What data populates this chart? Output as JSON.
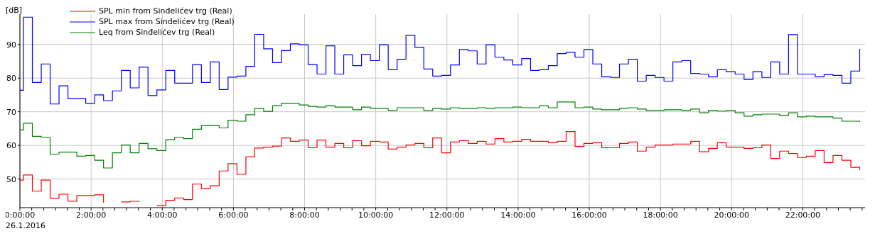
{
  "chart_data": {
    "type": "step",
    "ylabel": "[dB]",
    "annotations": [
      "26.1.2016"
    ],
    "x": [
      0,
      0.1,
      0.35,
      0.6,
      0.85,
      1.1,
      1.35,
      1.6,
      1.85,
      2.1,
      2.35,
      2.6,
      2.85,
      3.1,
      3.35,
      3.6,
      3.85,
      4.1,
      4.35,
      4.6,
      4.85,
      5.1,
      5.35,
      5.6,
      5.85,
      6.1,
      6.35,
      6.6,
      6.85,
      7.1,
      7.35,
      7.6,
      7.85,
      8.1,
      8.35,
      8.6,
      8.85,
      9.1,
      9.35,
      9.6,
      9.85,
      10.1,
      10.35,
      10.6,
      10.85,
      11.1,
      11.35,
      11.6,
      11.85,
      12.1,
      12.35,
      12.6,
      12.85,
      13.1,
      13.35,
      13.6,
      13.85,
      14.1,
      14.35,
      14.6,
      14.85,
      15.1,
      15.35,
      15.6,
      15.85,
      16.1,
      16.35,
      16.6,
      16.85,
      17.1,
      17.35,
      17.6,
      17.85,
      18.1,
      18.35,
      18.6,
      18.85,
      19.1,
      19.35,
      19.6,
      19.85,
      20.1,
      20.35,
      20.6,
      20.85,
      21.1,
      21.35,
      21.6,
      21.85,
      22.1,
      22.35,
      22.6,
      22.85,
      23.1,
      23.35,
      23.6
    ],
    "series": [
      {
        "name": "SPL min from Sinđelićev trg (Real)",
        "color": "#ff0000",
        "values": [
          49.7,
          51.2,
          46.4,
          49.7,
          44.3,
          45.5,
          43.4,
          45.1,
          45.1,
          45.3,
          43.0,
          null,
          43.2,
          43.4,
          43.2,
          null,
          42.1,
          43.7,
          44.4,
          43.9,
          48.5,
          47.2,
          48.0,
          52.4,
          54.6,
          51.4,
          56.6,
          59.2,
          59.5,
          59.8,
          62.2,
          61.2,
          61.6,
          59.3,
          61.6,
          59.5,
          60.6,
          59.3,
          61.4,
          59.9,
          61.2,
          61.0,
          58.9,
          59.5,
          60.1,
          60.6,
          59.3,
          62.2,
          57.8,
          61.0,
          61.4,
          60.6,
          61.2,
          60.4,
          62.0,
          61.0,
          61.2,
          61.8,
          61.2,
          61.2,
          60.8,
          61.2,
          64.1,
          59.7,
          60.6,
          60.8,
          59.3,
          59.3,
          60.6,
          61.0,
          58.3,
          59.5,
          60.1,
          60.1,
          60.4,
          60.4,
          61.2,
          58.1,
          59.1,
          60.8,
          59.5,
          59.5,
          59.1,
          59.3,
          60.1,
          56.1,
          58.3,
          57.6,
          56.4,
          56.8,
          58.5,
          54.9,
          57.0,
          55.6,
          53.5,
          52.6
        ]
      },
      {
        "name": "SPL max from Sinđelićev trg (Real)",
        "color": "#0000ff",
        "values": [
          76.4,
          98.1,
          78.7,
          84.2,
          72.3,
          77.7,
          73.9,
          73.9,
          72.5,
          75.0,
          73.3,
          76.2,
          82.3,
          77.1,
          83.3,
          74.8,
          76.5,
          82.3,
          78.5,
          78.5,
          84.0,
          78.7,
          84.8,
          76.6,
          80.3,
          80.6,
          83.5,
          93.0,
          88.7,
          84.6,
          88.2,
          90.2,
          89.9,
          84.0,
          81.2,
          89.6,
          81.2,
          86.9,
          83.7,
          87.1,
          85.2,
          89.9,
          82.5,
          85.6,
          92.7,
          89.2,
          82.7,
          80.6,
          80.8,
          83.9,
          88.5,
          88.1,
          84.2,
          89.9,
          86.2,
          85.4,
          83.9,
          85.8,
          82.3,
          82.5,
          83.7,
          87.3,
          87.7,
          86.2,
          88.5,
          84.2,
          80.4,
          80.2,
          84.2,
          85.6,
          79.1,
          80.8,
          80.2,
          79.1,
          84.8,
          85.2,
          81.4,
          81.2,
          80.4,
          82.5,
          81.9,
          81.2,
          79.6,
          81.9,
          80.2,
          84.8,
          81.2,
          92.9,
          81.2,
          81.2,
          80.4,
          81.0,
          80.8,
          78.5,
          82.1,
          88.7
        ]
      },
      {
        "name": "Leq from Sinđelićev trg (Real)",
        "color": "#008000",
        "values": [
          64.6,
          66.6,
          62.7,
          62.4,
          57.4,
          58.0,
          58.0,
          56.8,
          57.0,
          55.6,
          53.3,
          57.8,
          60.1,
          57.8,
          60.6,
          59.0,
          58.5,
          61.7,
          62.4,
          62.0,
          64.8,
          65.9,
          65.9,
          65.2,
          67.5,
          67.2,
          69.1,
          71.0,
          70.1,
          71.8,
          72.5,
          72.5,
          72.0,
          71.6,
          71.4,
          71.8,
          71.4,
          71.4,
          70.6,
          71.4,
          71.0,
          71.0,
          70.4,
          71.2,
          71.2,
          71.2,
          70.4,
          71.0,
          70.8,
          71.2,
          71.0,
          71.0,
          71.2,
          71.0,
          71.2,
          71.2,
          71.4,
          71.2,
          71.2,
          71.8,
          71.2,
          72.9,
          72.9,
          71.2,
          71.4,
          70.8,
          70.6,
          70.6,
          71.0,
          71.2,
          70.8,
          70.4,
          70.4,
          70.6,
          70.6,
          70.4,
          70.8,
          69.7,
          70.4,
          70.2,
          70.4,
          69.7,
          68.7,
          69.1,
          69.3,
          69.3,
          68.9,
          69.7,
          68.5,
          68.7,
          68.5,
          68.5,
          68.1,
          67.2,
          67.2,
          67.0
        ]
      }
    ],
    "xlim": [
      0,
      23.75
    ],
    "ylim": [
      41.5,
      99
    ],
    "yticks": [
      50,
      60,
      70,
      80,
      90
    ],
    "xticks": [
      {
        "value": 0,
        "label": "0:00:00"
      },
      {
        "value": 0.333,
        "label": null
      },
      {
        "value": 0.667,
        "label": null
      },
      {
        "value": 1,
        "label": null
      },
      {
        "value": 1.333,
        "label": null
      },
      {
        "value": 1.667,
        "label": null
      },
      {
        "value": 2,
        "label": "2:00:00"
      },
      {
        "value": 2.333,
        "label": null
      },
      {
        "value": 2.667,
        "label": null
      },
      {
        "value": 3,
        "label": null
      },
      {
        "value": 3.333,
        "label": null
      },
      {
        "value": 3.667,
        "label": null
      },
      {
        "value": 4,
        "label": "4:00:00"
      },
      {
        "value": 4.333,
        "label": null
      },
      {
        "value": 4.667,
        "label": null
      },
      {
        "value": 5,
        "label": null
      },
      {
        "value": 5.333,
        "label": null
      },
      {
        "value": 5.667,
        "label": null
      },
      {
        "value": 6,
        "label": "6:00:00"
      },
      {
        "value": 6.333,
        "label": null
      },
      {
        "value": 6.667,
        "label": null
      },
      {
        "value": 7,
        "label": null
      },
      {
        "value": 7.333,
        "label": null
      },
      {
        "value": 7.667,
        "label": null
      },
      {
        "value": 8,
        "label": "8:00:00"
      },
      {
        "value": 8.333,
        "label": null
      },
      {
        "value": 8.667,
        "label": null
      },
      {
        "value": 9,
        "label": null
      },
      {
        "value": 9.333,
        "label": null
      },
      {
        "value": 9.667,
        "label": null
      },
      {
        "value": 10,
        "label": "10:00:00"
      },
      {
        "value": 10.333,
        "label": null
      },
      {
        "value": 10.667,
        "label": null
      },
      {
        "value": 11,
        "label": null
      },
      {
        "value": 11.333,
        "label": null
      },
      {
        "value": 11.667,
        "label": null
      },
      {
        "value": 12,
        "label": "12:00:00"
      },
      {
        "value": 12.333,
        "label": null
      },
      {
        "value": 12.667,
        "label": null
      },
      {
        "value": 13,
        "label": null
      },
      {
        "value": 13.333,
        "label": null
      },
      {
        "value": 13.667,
        "label": null
      },
      {
        "value": 14,
        "label": "14:00:00"
      },
      {
        "value": 14.333,
        "label": null
      },
      {
        "value": 14.667,
        "label": null
      },
      {
        "value": 15,
        "label": null
      },
      {
        "value": 15.333,
        "label": null
      },
      {
        "value": 15.667,
        "label": null
      },
      {
        "value": 16,
        "label": "16:00:00"
      },
      {
        "value": 16.333,
        "label": null
      },
      {
        "value": 16.667,
        "label": null
      },
      {
        "value": 17,
        "label": null
      },
      {
        "value": 17.333,
        "label": null
      },
      {
        "value": 17.667,
        "label": null
      },
      {
        "value": 18,
        "label": "18:00:00"
      },
      {
        "value": 18.333,
        "label": null
      },
      {
        "value": 18.667,
        "label": null
      },
      {
        "value": 19,
        "label": null
      },
      {
        "value": 19.333,
        "label": null
      },
      {
        "value": 19.667,
        "label": null
      },
      {
        "value": 20,
        "label": "20:00:00"
      },
      {
        "value": 20.333,
        "label": null
      },
      {
        "value": 20.667,
        "label": null
      },
      {
        "value": 21,
        "label": null
      },
      {
        "value": 21.333,
        "label": null
      },
      {
        "value": 21.667,
        "label": null
      },
      {
        "value": 22,
        "label": "22:00:00"
      },
      {
        "value": 22.333,
        "label": null
      },
      {
        "value": 22.667,
        "label": null
      },
      {
        "value": 23,
        "label": null
      },
      {
        "value": 23.333,
        "label": null
      },
      {
        "value": 23.667,
        "label": null
      }
    ],
    "grid": true,
    "legend": "top left",
    "marker": "none",
    "line_style": "solid"
  }
}
